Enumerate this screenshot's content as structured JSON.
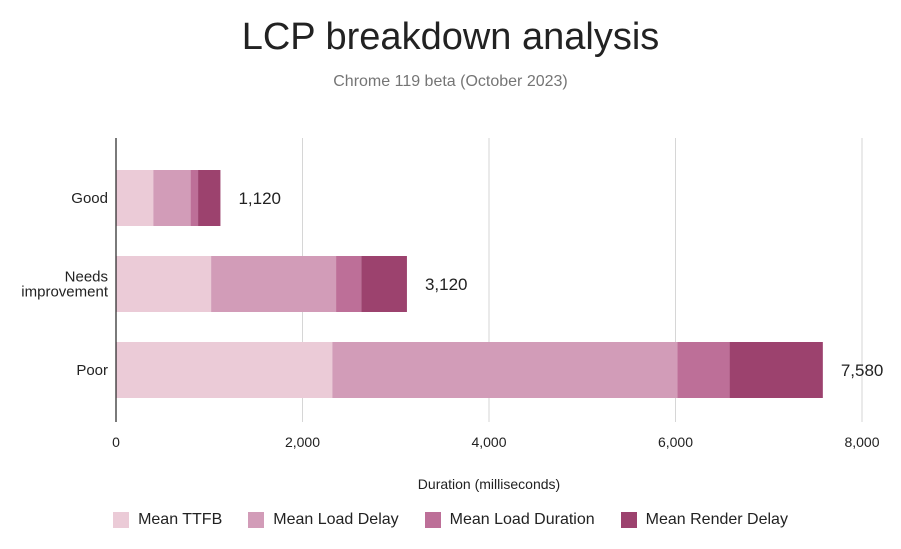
{
  "chart_data": {
    "type": "bar",
    "orientation": "horizontal",
    "stacked": true,
    "title": "LCP breakdown analysis",
    "subtitle": "Chrome 119 beta (October 2023)",
    "xlabel": "Duration (milliseconds)",
    "ylabel": "",
    "xlim": [
      0,
      8000
    ],
    "xticks": [
      0,
      2000,
      4000,
      6000,
      8000
    ],
    "xtick_labels": [
      "0",
      "2,000",
      "4,000",
      "6,000",
      "8,000"
    ],
    "grid": true,
    "legend_position": "bottom",
    "categories": [
      {
        "label_lines": [
          "Good"
        ],
        "total": 1120,
        "total_label": "1,120"
      },
      {
        "label_lines": [
          "Needs",
          "improvement"
        ],
        "total": 3120,
        "total_label": "3,120"
      },
      {
        "label_lines": [
          "Poor"
        ],
        "total": 7580,
        "total_label": "7,580"
      }
    ],
    "series": [
      {
        "name": "Mean TTFB",
        "color": "#ebcbd7",
        "values": [
          400,
          1020,
          2320
        ]
      },
      {
        "name": "Mean Load Delay",
        "color": "#d29cb8",
        "values": [
          400,
          1340,
          3700
        ]
      },
      {
        "name": "Mean Load Duration",
        "color": "#bd6f98",
        "values": [
          80,
          270,
          560
        ]
      },
      {
        "name": "Mean Render Delay",
        "color": "#9c426e",
        "values": [
          240,
          490,
          1000
        ]
      }
    ]
  }
}
